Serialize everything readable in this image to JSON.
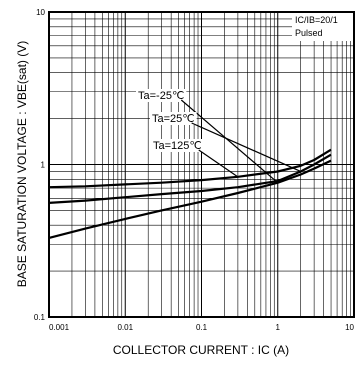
{
  "chart_data": {
    "type": "line",
    "xlabel": "COLLECTOR CURRENT : IC (A)",
    "ylabel": "BASE SATURATION VOLTAGE : VBE(sat) (V)",
    "xscale": "log",
    "yscale": "log",
    "xlim": [
      0.001,
      10
    ],
    "ylim": [
      0.1,
      10
    ],
    "grid": true,
    "x_ticks": [
      "0.001",
      "0.01",
      "0.1",
      "1",
      "10"
    ],
    "y_ticks": [
      "10",
      "1",
      "0.1"
    ],
    "condition_label_1": "IC/IB=20/1",
    "condition_label_2": "Pulsed",
    "series": [
      {
        "name": "Ta=-25℃",
        "x": [
          0.001,
          0.003,
          0.01,
          0.03,
          0.1,
          0.3,
          1,
          2,
          3,
          5
        ],
        "y": [
          0.33,
          0.38,
          0.44,
          0.5,
          0.57,
          0.65,
          0.76,
          0.86,
          0.94,
          1.06
        ]
      },
      {
        "name": "Ta=25℃",
        "x": [
          0.001,
          0.003,
          0.01,
          0.03,
          0.1,
          0.3,
          1,
          2,
          3,
          5
        ],
        "y": [
          0.56,
          0.58,
          0.61,
          0.64,
          0.67,
          0.71,
          0.78,
          0.9,
          1.0,
          1.16
        ]
      },
      {
        "name": "Ta=125℃",
        "x": [
          0.001,
          0.003,
          0.01,
          0.03,
          0.1,
          0.3,
          1,
          2,
          3,
          5
        ],
        "y": [
          0.71,
          0.72,
          0.74,
          0.76,
          0.79,
          0.83,
          0.9,
          0.98,
          1.07,
          1.25
        ]
      }
    ]
  }
}
